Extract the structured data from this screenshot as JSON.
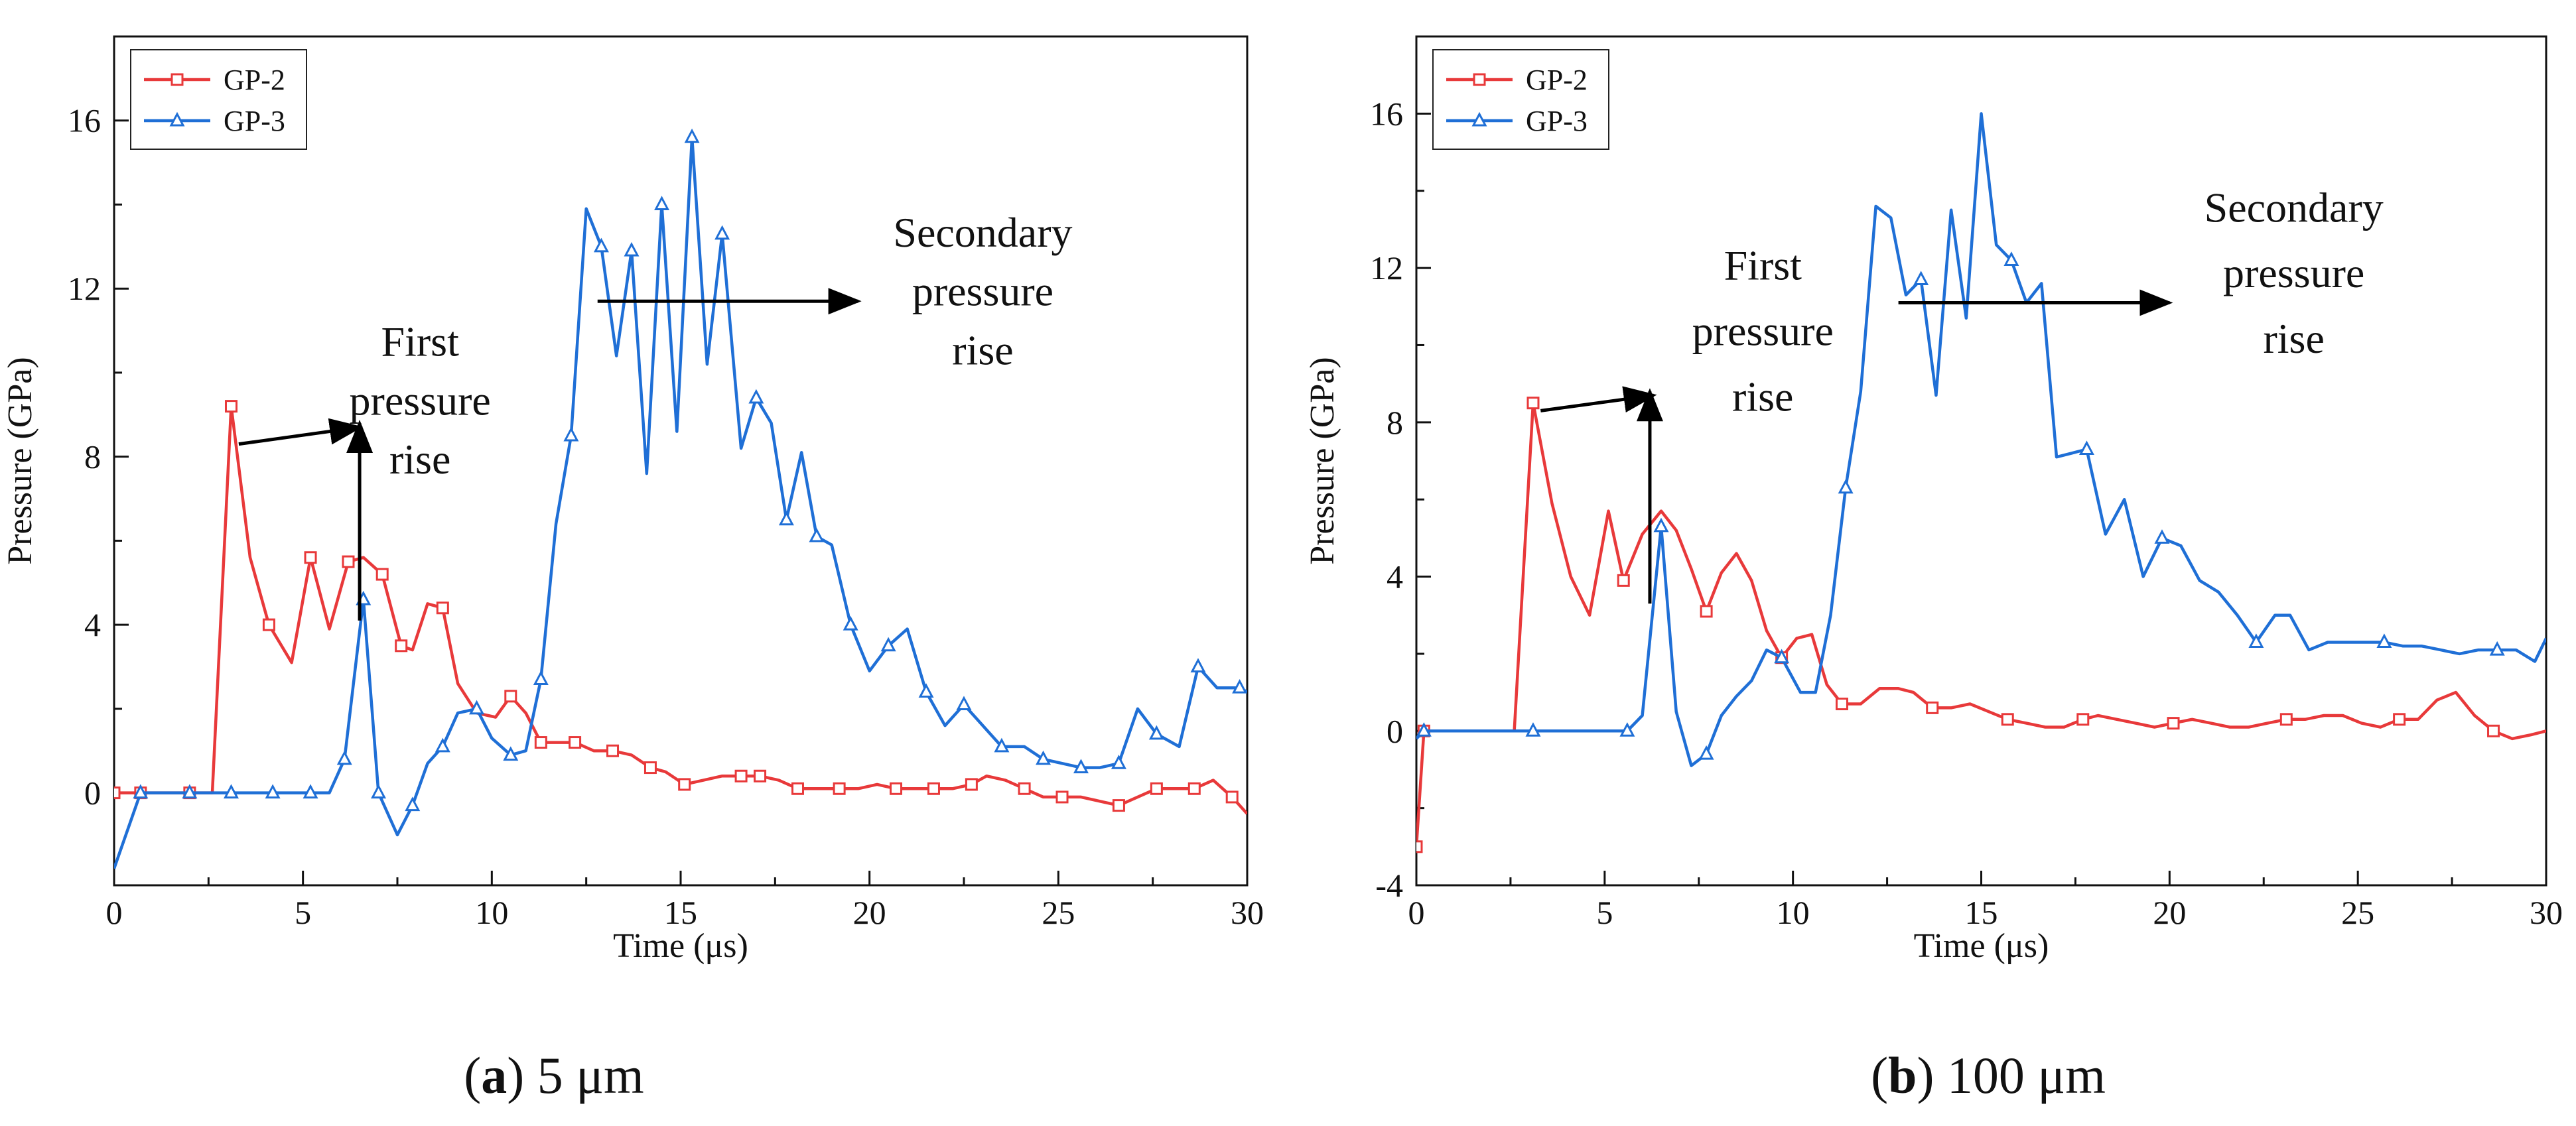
{
  "figure": {
    "captions": [
      {
        "open": "(",
        "letter": "a",
        "close": ")",
        "rest": " 5 μm"
      },
      {
        "open": "(",
        "letter": "b",
        "close": ")",
        "rest": " 100 μm"
      }
    ]
  },
  "colors": {
    "gp2": "#e8393a",
    "gp3": "#1f6fd6",
    "axis": "#111111",
    "arrow": "#000000"
  },
  "chart_data": [
    {
      "type": "line",
      "id": "a",
      "xlabel": "Time (μs)",
      "ylabel": "Pressure (GPa)",
      "xlim": [
        0,
        30
      ],
      "ylim": [
        -2.2,
        18
      ],
      "xticks": [
        0,
        5,
        10,
        15,
        20,
        25,
        30
      ],
      "yticks": [
        0,
        4,
        8,
        12,
        16
      ],
      "legend_position": "top-left",
      "series": [
        {
          "name": "GP-2",
          "marker": "square",
          "color": "#e8393a",
          "x": [
            0,
            0.7,
            2.0,
            2.6,
            3.1,
            3.6,
            4.1,
            4.7,
            5.2,
            5.7,
            6.2,
            6.6,
            7.1,
            7.6,
            7.9,
            8.3,
            8.7,
            9.1,
            9.6,
            10.1,
            10.5,
            10.9,
            11.3,
            11.7,
            12.2,
            12.7,
            13.2,
            13.7,
            14.2,
            14.6,
            15.1,
            15.6,
            16.1,
            16.6,
            17.1,
            17.6,
            18.1,
            18.6,
            19.2,
            19.7,
            20.2,
            20.7,
            21.2,
            21.7,
            22.2,
            22.7,
            23.1,
            23.6,
            24.1,
            24.6,
            25.1,
            25.6,
            26.1,
            26.6,
            27.1,
            27.6,
            28.1,
            28.6,
            29.1,
            29.6,
            30.0
          ],
          "y": [
            0,
            0,
            0,
            0,
            9.2,
            5.6,
            4.0,
            3.1,
            5.6,
            3.9,
            5.5,
            5.6,
            5.2,
            3.5,
            3.4,
            4.5,
            4.4,
            2.6,
            1.9,
            1.8,
            2.3,
            1.9,
            1.2,
            1.2,
            1.2,
            1.0,
            1.0,
            0.9,
            0.6,
            0.5,
            0.2,
            0.3,
            0.4,
            0.4,
            0.4,
            0.3,
            0.1,
            0.1,
            0.1,
            0.1,
            0.2,
            0.1,
            0.1,
            0.1,
            0.1,
            0.2,
            0.4,
            0.3,
            0.1,
            -0.1,
            -0.1,
            -0.1,
            -0.2,
            -0.3,
            -0.1,
            0.1,
            0.1,
            0.1,
            0.3,
            -0.1,
            -0.5
          ],
          "marked_points": [
            0,
            1,
            2,
            4,
            6,
            8,
            10,
            12,
            13,
            16,
            20,
            22,
            24,
            26,
            28,
            30,
            33,
            34,
            36,
            38,
            41,
            43,
            45,
            48,
            50,
            53,
            55,
            57,
            59
          ]
        },
        {
          "name": "GP-3",
          "marker": "triangle",
          "color": "#1f6fd6",
          "x": [
            0,
            0.7,
            2.0,
            3.1,
            4.2,
            5.2,
            5.7,
            6.1,
            6.6,
            7.0,
            7.5,
            7.9,
            8.3,
            8.7,
            9.1,
            9.6,
            10.0,
            10.5,
            10.9,
            11.3,
            11.7,
            12.1,
            12.5,
            12.9,
            13.3,
            13.7,
            14.1,
            14.5,
            14.9,
            15.3,
            15.7,
            16.1,
            16.6,
            17.0,
            17.4,
            17.8,
            18.2,
            18.6,
            19.0,
            19.5,
            20.0,
            20.5,
            21.0,
            21.5,
            22.0,
            22.5,
            23.0,
            23.5,
            24.1,
            24.6,
            25.1,
            25.6,
            26.1,
            26.6,
            27.1,
            27.6,
            28.2,
            28.7,
            29.2,
            29.8,
            30.0
          ],
          "y": [
            -1.8,
            0,
            0,
            0,
            0,
            0,
            0,
            0.8,
            4.6,
            0,
            -1.0,
            -0.3,
            0.7,
            1.1,
            1.9,
            2.0,
            1.3,
            0.9,
            1.0,
            2.7,
            6.4,
            8.5,
            13.9,
            13.0,
            10.4,
            12.9,
            7.6,
            14.0,
            8.6,
            15.6,
            10.2,
            13.3,
            8.2,
            9.4,
            8.8,
            6.5,
            8.1,
            6.1,
            5.9,
            4.0,
            2.9,
            3.5,
            3.9,
            2.4,
            1.6,
            2.1,
            1.6,
            1.1,
            1.1,
            0.8,
            0.7,
            0.6,
            0.6,
            0.7,
            2.0,
            1.4,
            1.1,
            3.0,
            2.5,
            2.5,
            2.4
          ],
          "marked_points": [
            1,
            2,
            3,
            4,
            5,
            7,
            8,
            9,
            11,
            13,
            15,
            17,
            19,
            21,
            23,
            25,
            27,
            29,
            31,
            33,
            35,
            37,
            39,
            41,
            43,
            45,
            47,
            49,
            51,
            53,
            55,
            57,
            59
          ]
        }
      ],
      "annotations": [
        {
          "text": [
            "First",
            "pressure",
            "rise"
          ],
          "anchor": [
            8.1,
            10.4
          ],
          "line_gap": 1.4
        },
        {
          "text": [
            "Secondary",
            "pressure",
            "rise"
          ],
          "anchor": [
            23.0,
            13.0
          ],
          "line_gap": 1.4
        }
      ],
      "arrows": [
        {
          "from": [
            3.3,
            8.3
          ],
          "to": [
            6.5,
            8.7
          ]
        },
        {
          "from": [
            6.5,
            4.1
          ],
          "to": [
            6.5,
            8.8
          ]
        },
        {
          "from": [
            12.8,
            11.7
          ],
          "to": [
            19.7,
            11.7
          ]
        }
      ]
    },
    {
      "type": "line",
      "id": "b",
      "xlabel": "Time (μs)",
      "ylabel": "Pressure (GPa)",
      "xlim": [
        0,
        30
      ],
      "ylim": [
        -4,
        18
      ],
      "xticks": [
        0,
        5,
        10,
        15,
        20,
        25,
        30
      ],
      "yticks": [
        -4,
        0,
        4,
        8,
        12,
        16
      ],
      "legend_position": "top-left",
      "series": [
        {
          "name": "GP-2",
          "marker": "square",
          "color": "#e8393a",
          "x": [
            0,
            0.2,
            2.6,
            3.1,
            3.6,
            4.1,
            4.6,
            5.1,
            5.5,
            6.0,
            6.5,
            6.9,
            7.3,
            7.7,
            8.1,
            8.5,
            8.9,
            9.3,
            9.7,
            10.1,
            10.5,
            10.9,
            11.3,
            11.8,
            12.3,
            12.8,
            13.2,
            13.7,
            14.2,
            14.7,
            15.2,
            15.7,
            16.2,
            16.7,
            17.2,
            17.7,
            18.1,
            18.6,
            19.1,
            19.6,
            20.1,
            20.6,
            21.1,
            21.6,
            22.1,
            22.6,
            23.1,
            23.6,
            24.1,
            24.6,
            25.1,
            25.6,
            26.1,
            26.6,
            27.1,
            27.6,
            28.1,
            28.6,
            29.1,
            29.6,
            30.0
          ],
          "y": [
            -3.0,
            0,
            0,
            8.5,
            5.9,
            4.0,
            3.0,
            5.7,
            3.9,
            5.1,
            5.7,
            5.2,
            4.2,
            3.1,
            4.1,
            4.6,
            3.9,
            2.6,
            1.9,
            2.4,
            2.5,
            1.2,
            0.7,
            0.7,
            1.1,
            1.1,
            1.0,
            0.6,
            0.6,
            0.7,
            0.5,
            0.3,
            0.2,
            0.1,
            0.1,
            0.3,
            0.4,
            0.3,
            0.2,
            0.1,
            0.2,
            0.3,
            0.2,
            0.1,
            0.1,
            0.2,
            0.3,
            0.3,
            0.4,
            0.4,
            0.2,
            0.1,
            0.3,
            0.3,
            0.8,
            1.0,
            0.4,
            0.0,
            -0.2,
            -0.1,
            0.0
          ],
          "marked_points": [
            0,
            1,
            3,
            8,
            13,
            18,
            22,
            27,
            31,
            35,
            40,
            46,
            52,
            57
          ]
        },
        {
          "name": "GP-3",
          "marker": "triangle",
          "color": "#1f6fd6",
          "x": [
            0,
            0.2,
            2.6,
            3.1,
            4.2,
            5.2,
            5.6,
            6.0,
            6.5,
            6.9,
            7.3,
            7.7,
            8.1,
            8.5,
            8.9,
            9.3,
            9.7,
            10.2,
            10.6,
            11.0,
            11.4,
            11.8,
            12.2,
            12.6,
            13.0,
            13.4,
            13.8,
            14.2,
            14.6,
            15.0,
            15.4,
            15.8,
            16.2,
            16.6,
            17.0,
            17.4,
            17.8,
            18.3,
            18.8,
            19.3,
            19.8,
            20.3,
            20.8,
            21.3,
            21.8,
            22.3,
            22.8,
            23.2,
            23.7,
            24.2,
            24.7,
            25.2,
            25.7,
            26.2,
            26.7,
            27.2,
            27.7,
            28.2,
            28.7,
            29.2,
            29.7,
            30.0
          ],
          "y": [
            -0.2,
            0,
            0,
            0,
            0,
            0,
            0,
            0.4,
            5.3,
            0.5,
            -0.9,
            -0.6,
            0.4,
            0.9,
            1.3,
            2.1,
            1.9,
            1.0,
            1.0,
            3.0,
            6.3,
            8.8,
            13.6,
            13.3,
            11.3,
            11.7,
            8.7,
            13.5,
            10.7,
            16.0,
            12.6,
            12.2,
            11.1,
            11.6,
            7.1,
            7.2,
            7.3,
            5.1,
            6.0,
            4.0,
            5.0,
            4.8,
            3.9,
            3.6,
            3.0,
            2.3,
            3.0,
            3.0,
            2.1,
            2.3,
            2.3,
            2.3,
            2.3,
            2.2,
            2.2,
            2.1,
            2.0,
            2.1,
            2.1,
            2.1,
            1.8,
            2.4
          ],
          "marked_points": [
            1,
            3,
            6,
            8,
            11,
            16,
            20,
            25,
            31,
            36,
            40,
            45,
            52,
            58
          ]
        }
      ],
      "annotations": [
        {
          "text": [
            "First",
            "pressure",
            "rise"
          ],
          "anchor": [
            9.2,
            11.7
          ],
          "line_gap": 1.7
        },
        {
          "text": [
            "Secondary",
            "pressure",
            "rise"
          ],
          "anchor": [
            23.3,
            13.2
          ],
          "line_gap": 1.7
        }
      ],
      "arrows": [
        {
          "from": [
            3.3,
            8.3
          ],
          "to": [
            6.3,
            8.7
          ]
        },
        {
          "from": [
            6.2,
            3.3
          ],
          "to": [
            6.2,
            8.8
          ]
        },
        {
          "from": [
            12.8,
            11.1
          ],
          "to": [
            20.0,
            11.1
          ]
        }
      ]
    }
  ]
}
